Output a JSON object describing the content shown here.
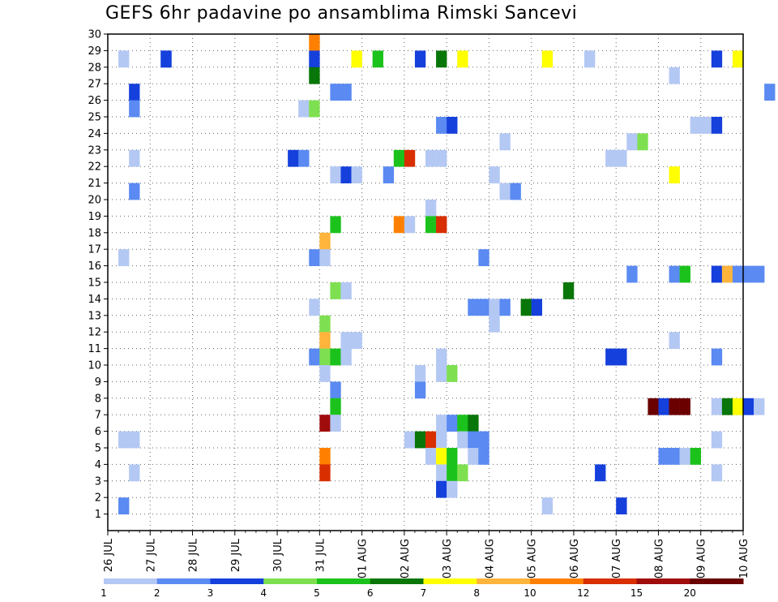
{
  "title": "GEFS 6hr padavine po ansamblima Rimski Sancevi",
  "chart_data": {
    "type": "heatmap",
    "title": "GEFS 6hr padavine po ansamblima Rimski Sancevi",
    "x_tick_labels": [
      "26 JUL",
      "27 JUL",
      "28 JUL",
      "29 JUL",
      "30 JUL",
      "31 JUL",
      "01 AUG",
      "02 AUG",
      "03 AUG",
      "04 AUG",
      "05 AUG",
      "06 AUG",
      "07 AUG",
      "08 AUG",
      "09 AUG",
      "10 AUG"
    ],
    "y_tick_labels": [
      "1",
      "2",
      "3",
      "4",
      "5",
      "6",
      "7",
      "8",
      "9",
      "10",
      "11",
      "12",
      "13",
      "14",
      "15",
      "16",
      "17",
      "18",
      "19",
      "20",
      "21",
      "22",
      "23",
      "24",
      "25",
      "26",
      "27",
      "28",
      "29",
      "30"
    ],
    "x_range": [
      0,
      60
    ],
    "y_range": [
      0,
      30
    ],
    "x_unit": "6-hour steps from 26 JUL 00Z",
    "grid": true,
    "legend": {
      "placement": "bottom",
      "labels": [
        "1",
        "2",
        "3",
        "4",
        "5",
        "6",
        "7",
        "8",
        "10",
        "12",
        "15",
        "20"
      ],
      "colors": [
        "#b4c8f4",
        "#5a8af2",
        "#1540dc",
        "#7ee050",
        "#1cc21c",
        "#087608",
        "#ffff00",
        "#ffb43c",
        "#ff8000",
        "#d82e00",
        "#a00c0c",
        "#6a0000"
      ]
    },
    "cells": [
      [
        0.5,
        29,
        0
      ],
      [
        2.5,
        29,
        2
      ],
      [
        2.5,
        29,
        2
      ],
      [
        9.5,
        30,
        8
      ],
      [
        9.5,
        29,
        2
      ],
      [
        11.5,
        29,
        6
      ],
      [
        12.5,
        29,
        4
      ],
      [
        14.5,
        29,
        2
      ],
      [
        15.5,
        29,
        5
      ],
      [
        16.5,
        29,
        6
      ],
      [
        20.5,
        29,
        6
      ],
      [
        22.5,
        29,
        0
      ],
      [
        28.5,
        29,
        2
      ],
      [
        29.5,
        29,
        6
      ],
      [
        26.5,
        28,
        0
      ],
      [
        9.5,
        28,
        5
      ],
      [
        1,
        27,
        2
      ],
      [
        10.5,
        27,
        1
      ],
      [
        11,
        27,
        1
      ],
      [
        31,
        27,
        1
      ],
      [
        1,
        26,
        1
      ],
      [
        9,
        26,
        0
      ],
      [
        9.5,
        26,
        3
      ],
      [
        15.5,
        25,
        1
      ],
      [
        16,
        25,
        2
      ],
      [
        27.5,
        25,
        0
      ],
      [
        28,
        25,
        0
      ],
      [
        28.5,
        25,
        2
      ],
      [
        18.5,
        24,
        0
      ],
      [
        24.5,
        24,
        0
      ],
      [
        25,
        24,
        3
      ],
      [
        1,
        23,
        0
      ],
      [
        8.5,
        23,
        2
      ],
      [
        9,
        23,
        1
      ],
      [
        13.5,
        23,
        4
      ],
      [
        14,
        23,
        9
      ],
      [
        15,
        23,
        0
      ],
      [
        15.5,
        23,
        0
      ],
      [
        23.5,
        23,
        0
      ],
      [
        24,
        23,
        0
      ],
      [
        10.5,
        22,
        0
      ],
      [
        11,
        22,
        2
      ],
      [
        11.5,
        22,
        0
      ],
      [
        13,
        22,
        1
      ],
      [
        18,
        22,
        0
      ],
      [
        26.5,
        22,
        6
      ],
      [
        1,
        21,
        1
      ],
      [
        18.5,
        21,
        0
      ],
      [
        19,
        21,
        1
      ],
      [
        15,
        20,
        0
      ],
      [
        10.5,
        19,
        4
      ],
      [
        13.5,
        19,
        8
      ],
      [
        14,
        19,
        0
      ],
      [
        15,
        19,
        4
      ],
      [
        15.5,
        19,
        9
      ],
      [
        10,
        18,
        7
      ],
      [
        0.5,
        17,
        0
      ],
      [
        9.5,
        17,
        1
      ],
      [
        10,
        17,
        0
      ],
      [
        17.5,
        17,
        1
      ],
      [
        24.5,
        16,
        1
      ],
      [
        26.5,
        16,
        1
      ],
      [
        27,
        16,
        4
      ],
      [
        28.5,
        16,
        2
      ],
      [
        29,
        16,
        7
      ],
      [
        29.5,
        16,
        1
      ],
      [
        30,
        16,
        1
      ],
      [
        30.5,
        16,
        1
      ],
      [
        10.5,
        15,
        3
      ],
      [
        11,
        15,
        0
      ],
      [
        21.5,
        15,
        5
      ],
      [
        9.5,
        14,
        0
      ],
      [
        17,
        14,
        1
      ],
      [
        17.5,
        14,
        1
      ],
      [
        18,
        14,
        0
      ],
      [
        18.5,
        14,
        1
      ],
      [
        19.5,
        14,
        5
      ],
      [
        20,
        14,
        2
      ],
      [
        18,
        13,
        0
      ],
      [
        10,
        13,
        3
      ],
      [
        10,
        12,
        7
      ],
      [
        11,
        12,
        0
      ],
      [
        11.5,
        12,
        0
      ],
      [
        26.5,
        12,
        0
      ],
      [
        9.5,
        11,
        1
      ],
      [
        10,
        11,
        3
      ],
      [
        10.5,
        11,
        4
      ],
      [
        11,
        11,
        0
      ],
      [
        15.5,
        11,
        0
      ],
      [
        23.5,
        11,
        2
      ],
      [
        24,
        11,
        2
      ],
      [
        28.5,
        11,
        1
      ],
      [
        10,
        10,
        0
      ],
      [
        14.5,
        10,
        0
      ],
      [
        15.5,
        10,
        0
      ],
      [
        16,
        10,
        3
      ],
      [
        10.5,
        9,
        1
      ],
      [
        14.5,
        9,
        1
      ],
      [
        10.5,
        8,
        4
      ],
      [
        25.5,
        8,
        11
      ],
      [
        26,
        8,
        2
      ],
      [
        26.5,
        8,
        11
      ],
      [
        27,
        8,
        11
      ],
      [
        28.5,
        8,
        0
      ],
      [
        29,
        8,
        5
      ],
      [
        29.5,
        8,
        6
      ],
      [
        30,
        8,
        2
      ],
      [
        30.5,
        8,
        0
      ],
      [
        10,
        7,
        10
      ],
      [
        10.5,
        7,
        0
      ],
      [
        15.5,
        7,
        0
      ],
      [
        16,
        7,
        1
      ],
      [
        16.5,
        7,
        4
      ],
      [
        17,
        7,
        5
      ],
      [
        0.5,
        6,
        0
      ],
      [
        1,
        6,
        0
      ],
      [
        14,
        6,
        0
      ],
      [
        14.5,
        6,
        5
      ],
      [
        15,
        6,
        9
      ],
      [
        15.5,
        6,
        0
      ],
      [
        16.5,
        6,
        0
      ],
      [
        17,
        6,
        1
      ],
      [
        17.5,
        6,
        1
      ],
      [
        28.5,
        6,
        0
      ],
      [
        10,
        5,
        8
      ],
      [
        15,
        5,
        0
      ],
      [
        15.5,
        5,
        6
      ],
      [
        16,
        5,
        4
      ],
      [
        17,
        5,
        0
      ],
      [
        17.5,
        5,
        1
      ],
      [
        26,
        5,
        1
      ],
      [
        26.5,
        5,
        1
      ],
      [
        27,
        5,
        0
      ],
      [
        27.5,
        5,
        4
      ],
      [
        1,
        4,
        0
      ],
      [
        10,
        4,
        9
      ],
      [
        15.5,
        4,
        0
      ],
      [
        16,
        4,
        4
      ],
      [
        16.5,
        4,
        3
      ],
      [
        23,
        4,
        2
      ],
      [
        28.5,
        4,
        0
      ],
      [
        15.5,
        3,
        2
      ],
      [
        16,
        3,
        0
      ],
      [
        0.5,
        2,
        1
      ],
      [
        20.5,
        2,
        0
      ],
      [
        24,
        2,
        2
      ]
    ]
  }
}
